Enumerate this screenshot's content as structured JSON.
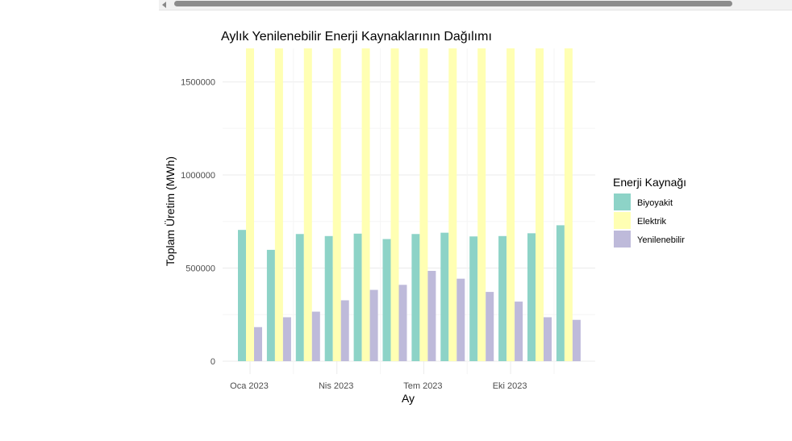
{
  "scrollbar": {
    "arrow_icon": "scroll-left-arrow-icon"
  },
  "chart_data": {
    "type": "bar",
    "title": "Aylık Yenilenebilir Enerji Kaynaklarının Dağılımı",
    "xlabel": "Ay",
    "ylabel": "Toplam Üretim (MWh)",
    "months": [
      "2023-01",
      "2023-02",
      "2023-03",
      "2023-04",
      "2023-05",
      "2023-06",
      "2023-07",
      "2023-08",
      "2023-09",
      "2023-10",
      "2023-11",
      "2023-12"
    ],
    "x_ticks": [
      {
        "month": "2023-01",
        "label": "Oca 2023"
      },
      {
        "month": "2023-04",
        "label": "Nis 2023"
      },
      {
        "month": "2023-07",
        "label": "Tem 2023"
      },
      {
        "month": "2023-10",
        "label": "Eki 2023"
      }
    ],
    "y_ticks": [
      {
        "value": 0,
        "label": "0"
      },
      {
        "value": 500000,
        "label": "500000"
      },
      {
        "value": 1000000,
        "label": "1000000"
      },
      {
        "value": 1500000,
        "label": "1500000"
      }
    ],
    "ylim": [
      0,
      1680000
    ],
    "grid": true,
    "legend": {
      "title": "Enerji Kaynağı",
      "position": "right"
    },
    "series": [
      {
        "name": "Biyoyakit",
        "color": "#8dd3c7",
        "values": [
          705000,
          598000,
          683000,
          672000,
          685000,
          656000,
          683000,
          690000,
          670000,
          672000,
          687000,
          730000
        ]
      },
      {
        "name": "Elektrik",
        "color": "#ffffb3",
        "values": [
          1680000,
          1680000,
          1680000,
          1680000,
          1680000,
          1680000,
          1680000,
          1680000,
          1680000,
          1680000,
          1680000,
          1680000
        ]
      },
      {
        "name": "Yenilenebilir",
        "color": "#bebada",
        "values": [
          183000,
          236000,
          266000,
          327000,
          383000,
          410000,
          485000,
          443000,
          372000,
          320000,
          236000,
          222000
        ]
      }
    ]
  }
}
